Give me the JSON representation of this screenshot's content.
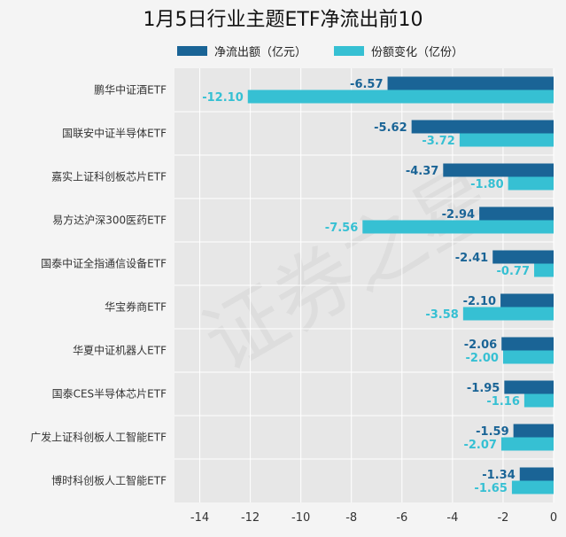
{
  "chart_data": {
    "type": "bar",
    "orientation": "horizontal",
    "title": "1月5日行业主题ETF净流出前10",
    "categories": [
      "鹏华中证酒ETF",
      "国联安中证半导体ETF",
      "嘉实上证科创板芯片ETF",
      "易方达沪深300医药ETF",
      "国泰中证全指通信设备ETF",
      "华宝券商ETF",
      "华夏中证机器人ETF",
      "国泰CES半导体芯片ETF",
      "广发上证科创板人工智能ETF",
      "博时科创板人工智能ETF"
    ],
    "series": [
      {
        "name": "净流出额（亿元）",
        "color": "#1a6496",
        "values": [
          -6.57,
          -5.62,
          -4.37,
          -2.94,
          -2.41,
          -2.1,
          -2.06,
          -1.95,
          -1.59,
          -1.34
        ],
        "labels": [
          "-6.57",
          "-5.62",
          "-4.37",
          "-2.94",
          "-2.41",
          "-2.10",
          "-2.06",
          "-1.95",
          "-1.59",
          "-1.34"
        ]
      },
      {
        "name": "份额变化（亿份）",
        "color": "#36c0d3",
        "values": [
          -12.1,
          -3.72,
          -1.8,
          -7.56,
          -0.77,
          -3.58,
          -2.0,
          -1.16,
          -2.07,
          -1.65
        ],
        "labels": [
          "-12.10",
          "-3.72",
          "-1.80",
          "-7.56",
          "-0.77",
          "-3.58",
          "-2.00",
          "-1.16",
          "-2.07",
          "-1.65"
        ]
      }
    ],
    "xlim": [
      -15,
      0
    ],
    "xticks": [
      -14,
      -12,
      -10,
      -8,
      -6,
      -4,
      -2,
      0
    ],
    "xlabel": "",
    "ylabel": "",
    "grid": true,
    "legend_position": "top",
    "plot_background": "#e7e7e7",
    "watermark": "证券之星"
  }
}
